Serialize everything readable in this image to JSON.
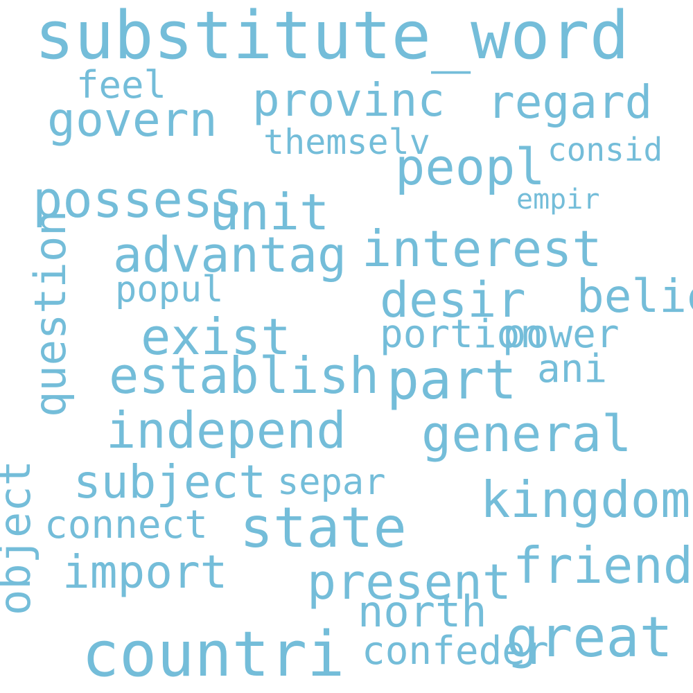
{
  "word_color": "#74bdd9",
  "background_color": "#ffffff",
  "words": [
    "substitute_word",
    "countri",
    "state",
    "great",
    "part",
    "peopl",
    "govern",
    "provinc",
    "regard",
    "unit",
    "interest",
    "advantag",
    "desir",
    "exist",
    "establish",
    "independ",
    "general",
    "kingdom",
    "present",
    "friend",
    "possess",
    "import",
    "north",
    "subject",
    "separ",
    "connect",
    "confeder",
    "believ",
    "power",
    "ani",
    "portion",
    "popul",
    "feel",
    "themselv",
    "consid",
    "empir",
    "object",
    "question"
  ]
}
